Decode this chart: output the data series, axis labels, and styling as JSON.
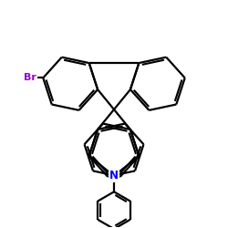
{
  "background_color": "#ffffff",
  "line_color": "#000000",
  "nitrogen_color": "#0000ff",
  "bromine_color": "#9900cc",
  "br_label": "Br",
  "n_label": "N",
  "figsize": [
    2.5,
    2.5
  ],
  "dpi": 100,
  "linewidth": 1.6
}
